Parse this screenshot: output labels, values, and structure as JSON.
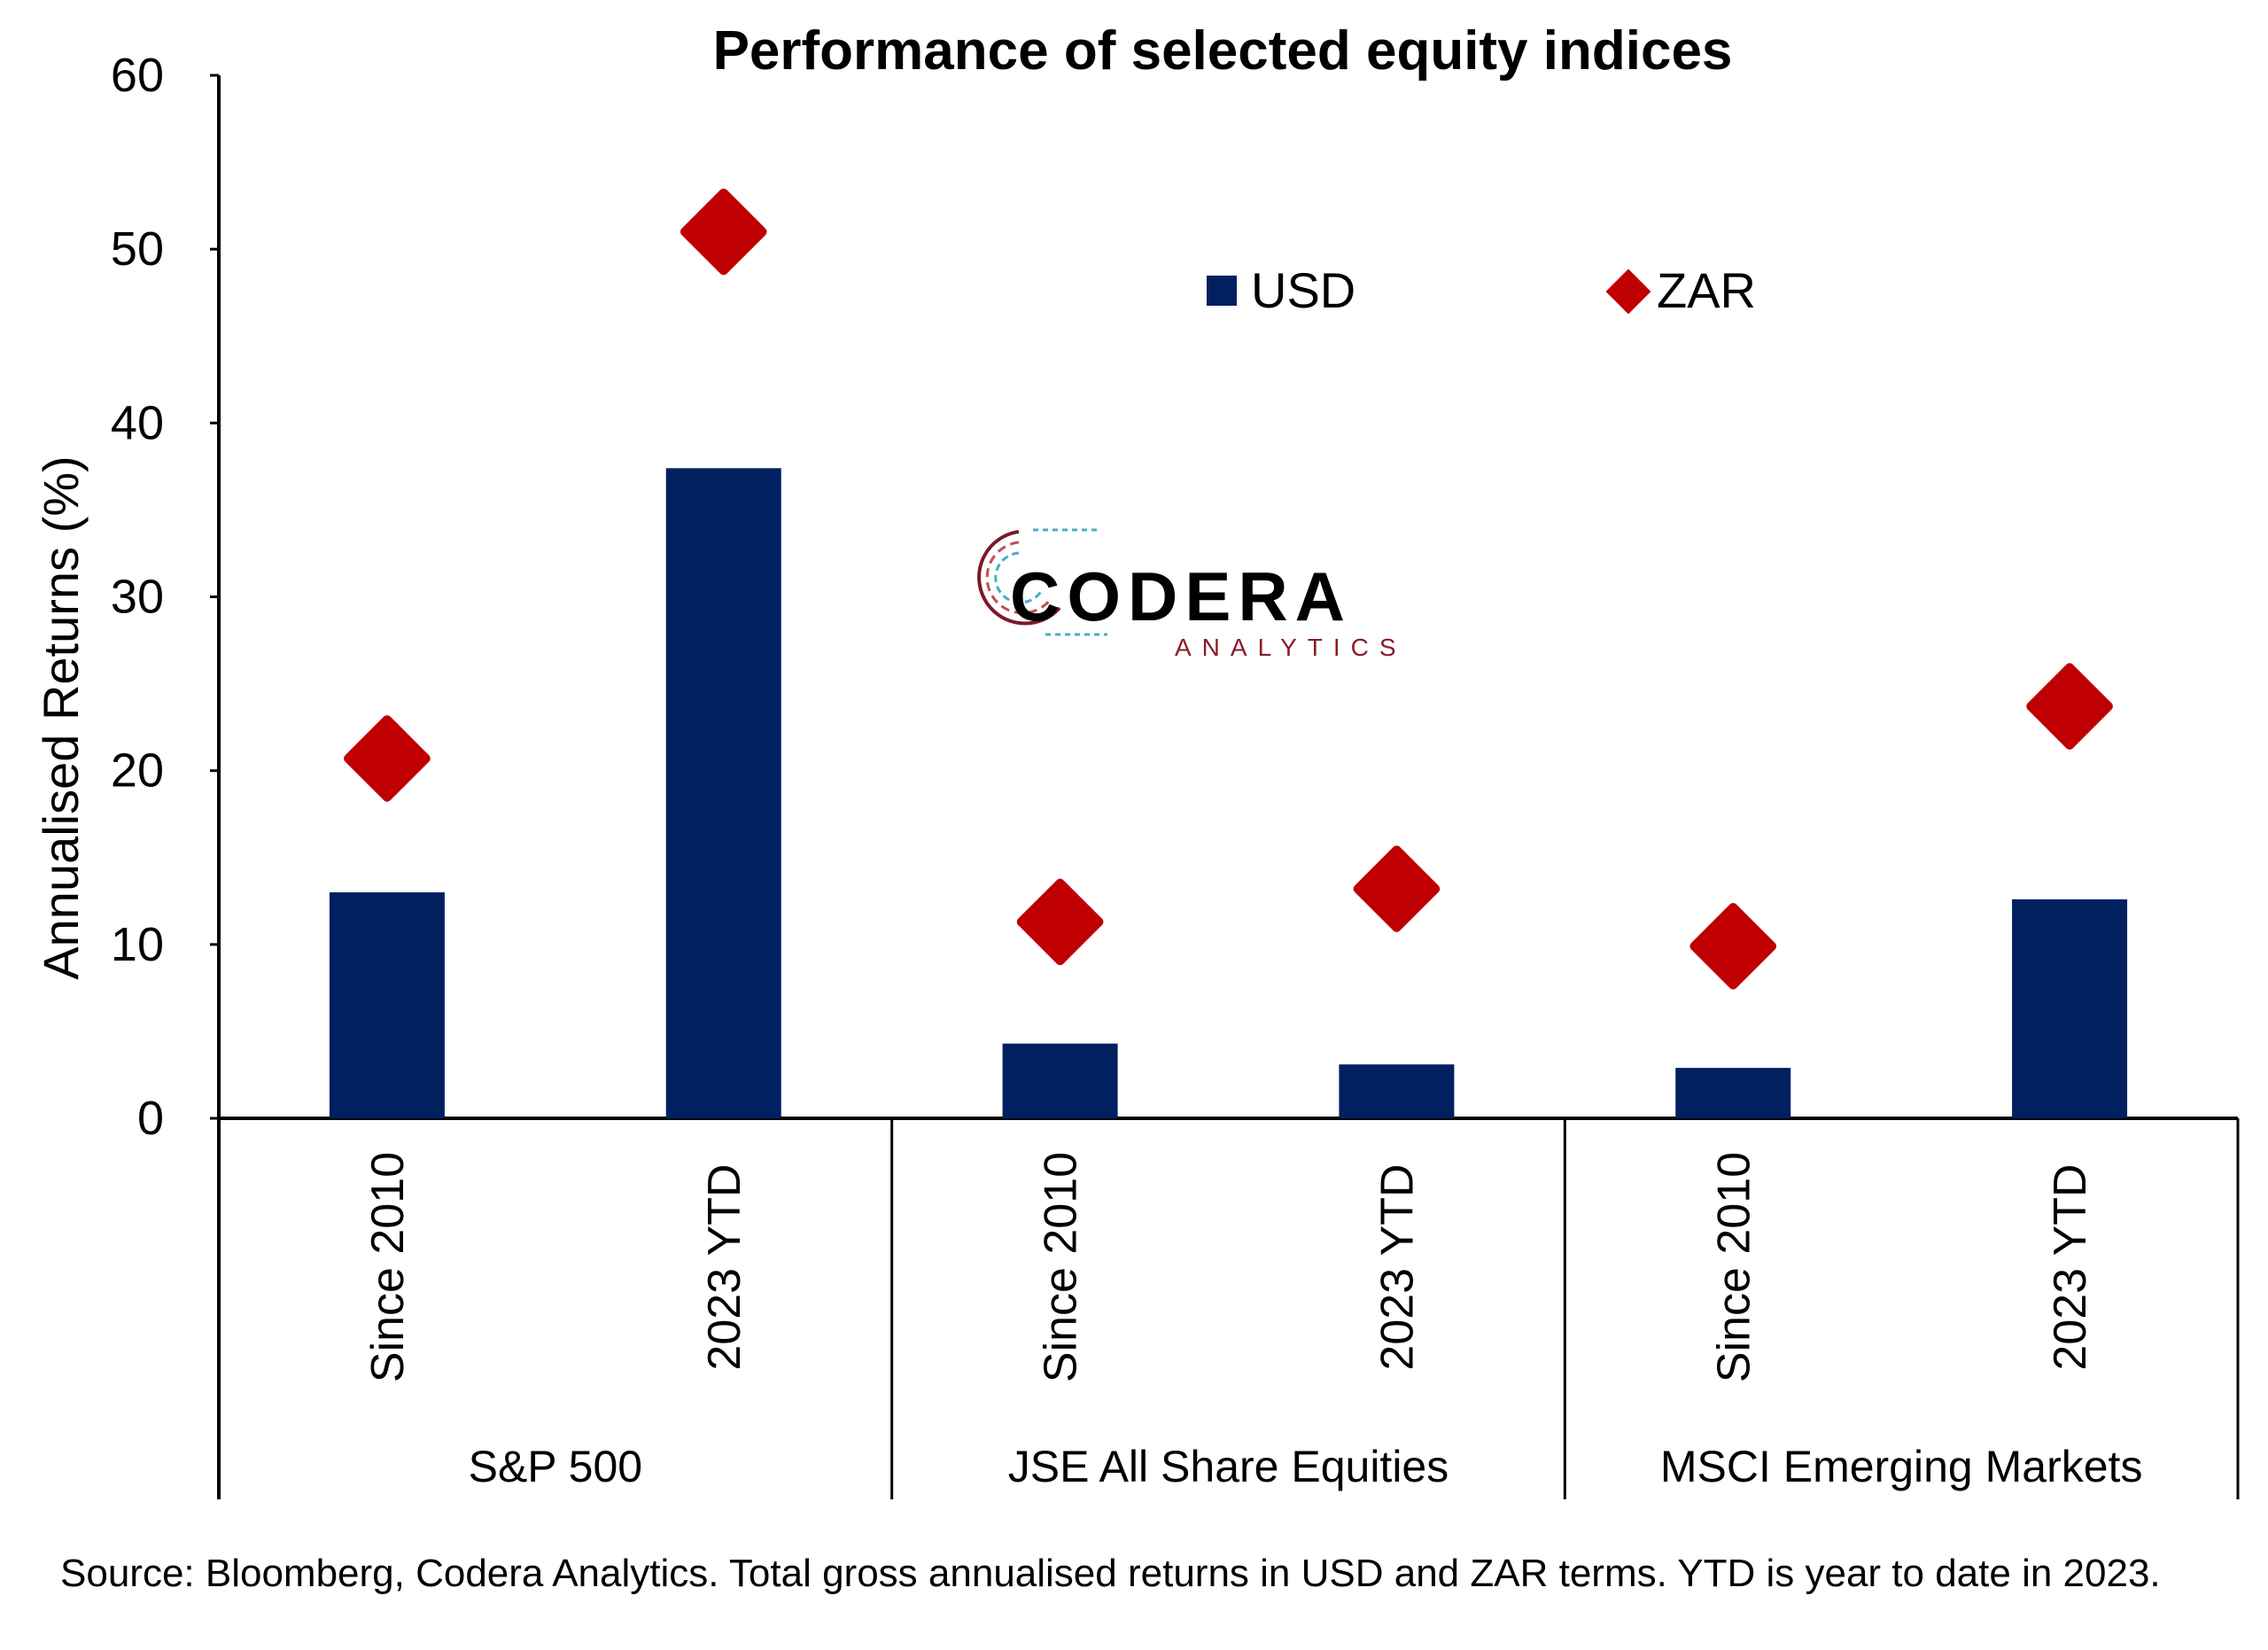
{
  "chart_data": {
    "type": "bar",
    "title": "Performance of selected equity indices",
    "ylabel": "Annualised Returns (%)",
    "ylim": [
      0,
      60
    ],
    "yticks": [
      "0",
      "10",
      "20",
      "30",
      "40",
      "50",
      "60"
    ],
    "groups": [
      {
        "label": "S&P 500",
        "categories": [
          "Since 2010",
          "2023 YTD"
        ]
      },
      {
        "label": "JSE All Share Equities",
        "categories": [
          "Since 2010",
          "2023 YTD"
        ]
      },
      {
        "label": "MSCI Emerging Markets",
        "categories": [
          "Since 2010",
          "2023 YTD"
        ]
      }
    ],
    "series": [
      {
        "name": "USD",
        "marker": "bar",
        "color": "#002060",
        "values": [
          13.0,
          37.4,
          4.3,
          3.1,
          2.9,
          12.6
        ]
      },
      {
        "name": "ZAR",
        "marker": "diamond",
        "color": "#C00000",
        "values": [
          20.7,
          51.0,
          11.3,
          13.2,
          9.9,
          23.7
        ]
      }
    ],
    "legend_position": "top-right",
    "grid": false
  },
  "logo": {
    "main": "CODERA",
    "sub": "ANALYTICS"
  },
  "source_note": "Source: Bloomberg, Codera Analytics. Total gross annualised returns in USD and ZAR terms. YTD is year to date in 2023."
}
